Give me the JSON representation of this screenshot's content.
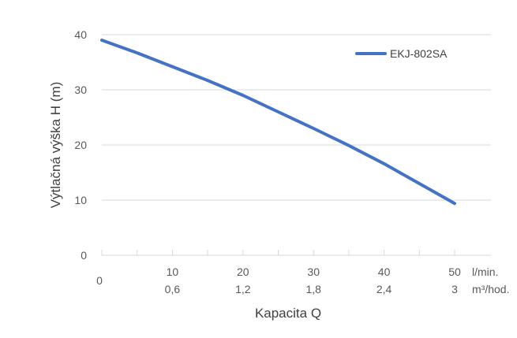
{
  "chart_data": {
    "type": "line",
    "ylabel": "Výtlačná výška H (m)",
    "xlabel": "Kapacita Q",
    "yticks": [
      "0",
      "10",
      "20",
      "30",
      "40"
    ],
    "ylim": [
      0,
      40
    ],
    "xlim": [
      0,
      50
    ],
    "x_ticks_primary": [
      "0",
      "10",
      "20",
      "30",
      "40",
      "50"
    ],
    "x_ticks_secondary": [
      "0,6",
      "1,2",
      "1,8",
      "2,4",
      "3"
    ],
    "x_unit_primary": "l/min.",
    "x_unit_secondary": "m³/hod.",
    "grid": "horizontal",
    "legend_position": "top-right",
    "series": [
      {
        "name": "EKJ-802SA",
        "color": "#4472C4",
        "x": [
          0,
          5,
          10,
          15,
          20,
          25,
          30,
          35,
          40,
          45,
          50
        ],
        "y": [
          39,
          36.7,
          34.2,
          31.7,
          29,
          26,
          23,
          19.9,
          16.6,
          13,
          9.4
        ]
      }
    ]
  }
}
